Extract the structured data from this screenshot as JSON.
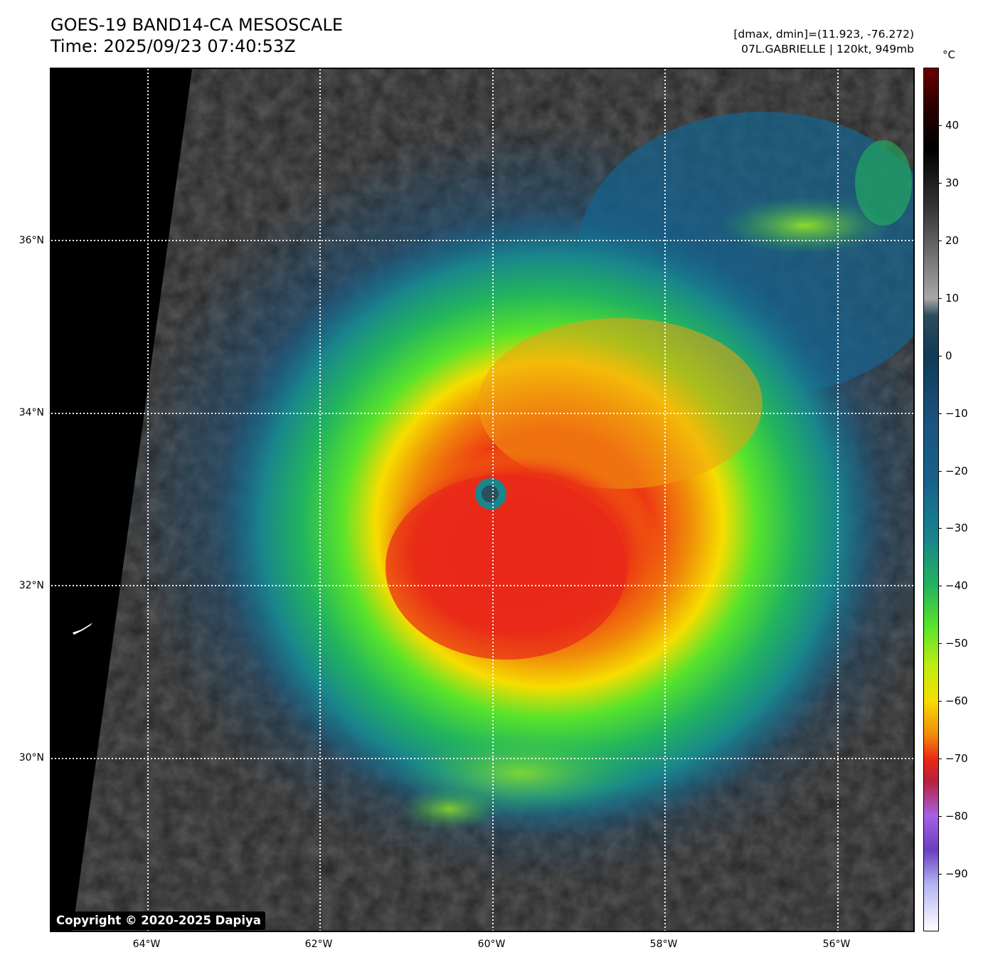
{
  "header": {
    "title_line1": "GOES-19 BAND14-CA MESOSCALE",
    "title_line2": "Time: 2025/09/23 07:40:53Z",
    "info_line1": "[dmax, dmin]=(11.923, -76.272)",
    "info_line2": "07L.GABRIELLE | 120kt, 949mb"
  },
  "map": {
    "lat_labels": [
      "36°N",
      "34°N",
      "32°N",
      "30°N"
    ],
    "lon_labels": [
      "64°W",
      "62°W",
      "60°W",
      "58°W",
      "56°W"
    ],
    "lat_values": [
      36,
      34,
      32,
      30
    ],
    "lon_values": [
      -64,
      -62,
      -60,
      -58,
      -56
    ],
    "storm_center": {
      "lat": 33.1,
      "lon": -60.0
    },
    "copyright": "Copyright © 2020-2025 Dapiya"
  },
  "colorbar": {
    "unit": "°C",
    "tick_labels": [
      "40",
      "30",
      "20",
      "10",
      "0",
      "−10",
      "−20",
      "−30",
      "−40",
      "−50",
      "−60",
      "−70",
      "−80",
      "−90"
    ],
    "tick_values": [
      40,
      30,
      20,
      10,
      0,
      -10,
      -20,
      -30,
      -40,
      -50,
      -60,
      -70,
      -80,
      -90
    ],
    "range": [
      -100,
      50
    ],
    "stops": [
      {
        "t": 50,
        "color": "#6b0000"
      },
      {
        "t": 43,
        "color": "#2a0000"
      },
      {
        "t": 36,
        "color": "#000000"
      },
      {
        "t": 25,
        "color": "#3a3a3a"
      },
      {
        "t": 10,
        "color": "#a8a8a8"
      },
      {
        "t": 7,
        "color": "#2b4e5c"
      },
      {
        "t": 0,
        "color": "#103a55"
      },
      {
        "t": -12,
        "color": "#1a5480"
      },
      {
        "t": -22,
        "color": "#17618c"
      },
      {
        "t": -32,
        "color": "#19868c"
      },
      {
        "t": -40,
        "color": "#22b45e"
      },
      {
        "t": -47,
        "color": "#58e32b"
      },
      {
        "t": -54,
        "color": "#c0ec13"
      },
      {
        "t": -60,
        "color": "#f6dd00"
      },
      {
        "t": -66,
        "color": "#f08a0a"
      },
      {
        "t": -70,
        "color": "#ea2a14"
      },
      {
        "t": -74,
        "color": "#b8203a"
      },
      {
        "t": -80,
        "color": "#a660e6"
      },
      {
        "t": -86,
        "color": "#6a3fc0"
      },
      {
        "t": -92,
        "color": "#b4b4f4"
      },
      {
        "t": -100,
        "color": "#ffffff"
      }
    ]
  }
}
